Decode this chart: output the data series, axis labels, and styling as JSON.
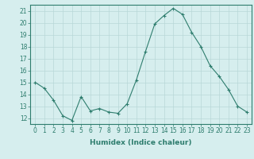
{
  "x": [
    0,
    1,
    2,
    3,
    4,
    5,
    6,
    7,
    8,
    9,
    10,
    11,
    12,
    13,
    14,
    15,
    16,
    17,
    18,
    19,
    20,
    21,
    22,
    23
  ],
  "y": [
    15.0,
    14.5,
    13.5,
    12.2,
    11.8,
    13.8,
    12.6,
    12.8,
    12.5,
    12.4,
    13.2,
    15.2,
    17.6,
    19.9,
    20.6,
    21.2,
    20.7,
    19.2,
    18.0,
    16.4,
    15.5,
    14.4,
    13.0,
    12.5
  ],
  "line_color": "#2e7d6e",
  "marker": "+",
  "marker_size": 3,
  "bg_color": "#d6eeee",
  "grid_color": "#b8d8d8",
  "xlabel": "Humidex (Indice chaleur)",
  "ylim": [
    11.5,
    21.5
  ],
  "xlim": [
    -0.5,
    23.5
  ],
  "yticks": [
    12,
    13,
    14,
    15,
    16,
    17,
    18,
    19,
    20,
    21
  ],
  "xticks": [
    0,
    1,
    2,
    3,
    4,
    5,
    6,
    7,
    8,
    9,
    10,
    11,
    12,
    13,
    14,
    15,
    16,
    17,
    18,
    19,
    20,
    21,
    22,
    23
  ],
  "tick_color": "#2e7d6e",
  "label_fontsize": 6.5,
  "tick_fontsize": 5.5
}
